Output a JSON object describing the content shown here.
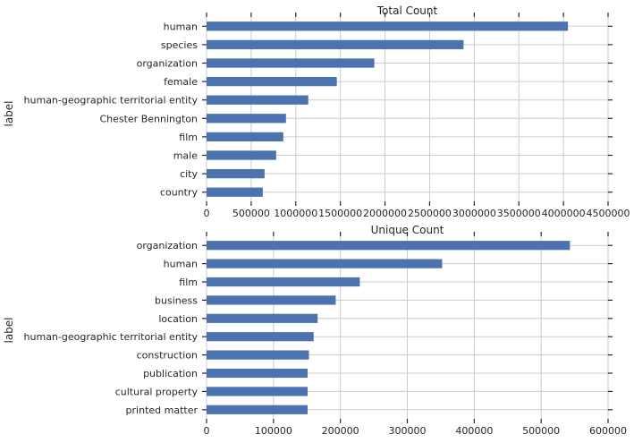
{
  "chart_data": [
    {
      "type": "bar",
      "orientation": "horizontal",
      "title": "Total Count",
      "ylabel": "label",
      "xlabel": "",
      "xlim": [
        0,
        4500000
      ],
      "xticks": [
        0,
        500000,
        1000000,
        1500000,
        2000000,
        2500000,
        3000000,
        3500000,
        4000000,
        4500000
      ],
      "grid": true,
      "bar_color": "#4c72b0",
      "categories": [
        "human",
        "species",
        "organization",
        "female",
        "human-geographic territorial entity",
        "Chester Bennington",
        "film",
        "male",
        "city",
        "country"
      ],
      "values": [
        4050000,
        2880000,
        1880000,
        1460000,
        1140000,
        890000,
        860000,
        780000,
        650000,
        630000
      ]
    },
    {
      "type": "bar",
      "orientation": "horizontal",
      "title": "Unique Count",
      "ylabel": "label",
      "xlabel": "",
      "xlim": [
        0,
        600000
      ],
      "xticks": [
        0,
        100000,
        200000,
        300000,
        400000,
        500000,
        600000
      ],
      "grid": true,
      "bar_color": "#4c72b0",
      "categories": [
        "organization",
        "human",
        "film",
        "business",
        "location",
        "human-geographic territorial entity",
        "construction",
        "publication",
        "cultural property",
        "printed matter"
      ],
      "values": [
        543000,
        352000,
        229000,
        193000,
        166000,
        160000,
        153000,
        151000,
        151000,
        151000
      ]
    }
  ]
}
